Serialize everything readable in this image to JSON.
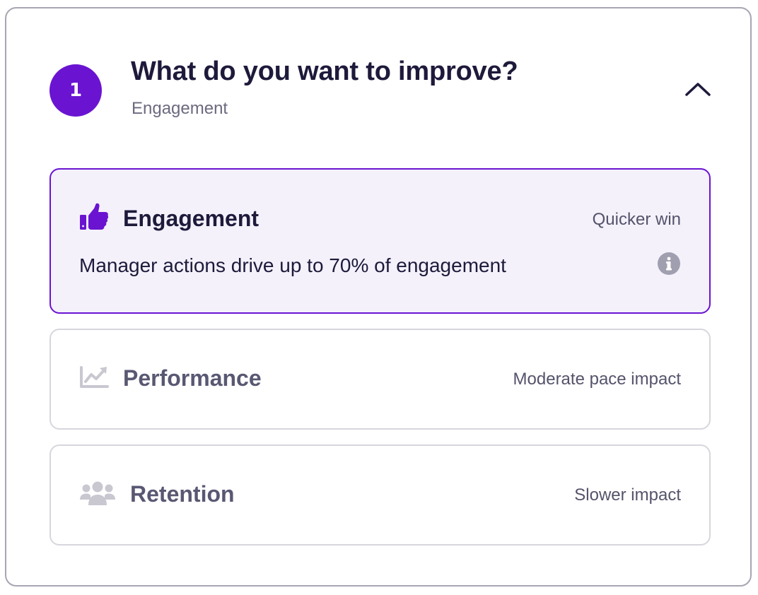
{
  "step": {
    "number": "1",
    "title": "What do you want to improve?",
    "selected_summary": "Engagement"
  },
  "options": [
    {
      "title": "Engagement",
      "impact": "Quicker win",
      "description": "Manager actions drive up to 70% of engagement",
      "icon": "thumbs-up-icon",
      "selected": true
    },
    {
      "title": "Performance",
      "impact": "Moderate pace impact",
      "icon": "trend-chart-icon",
      "selected": false
    },
    {
      "title": "Retention",
      "impact": "Slower impact",
      "icon": "people-group-icon",
      "selected": false
    }
  ],
  "colors": {
    "accent": "#6a14d1",
    "selected_bg": "#f4f1fb",
    "title_text": "#1d1a3b",
    "muted_text": "#6b6a7e",
    "border": "#d7d6dd",
    "icon_disabled": "#c9c8d1"
  }
}
